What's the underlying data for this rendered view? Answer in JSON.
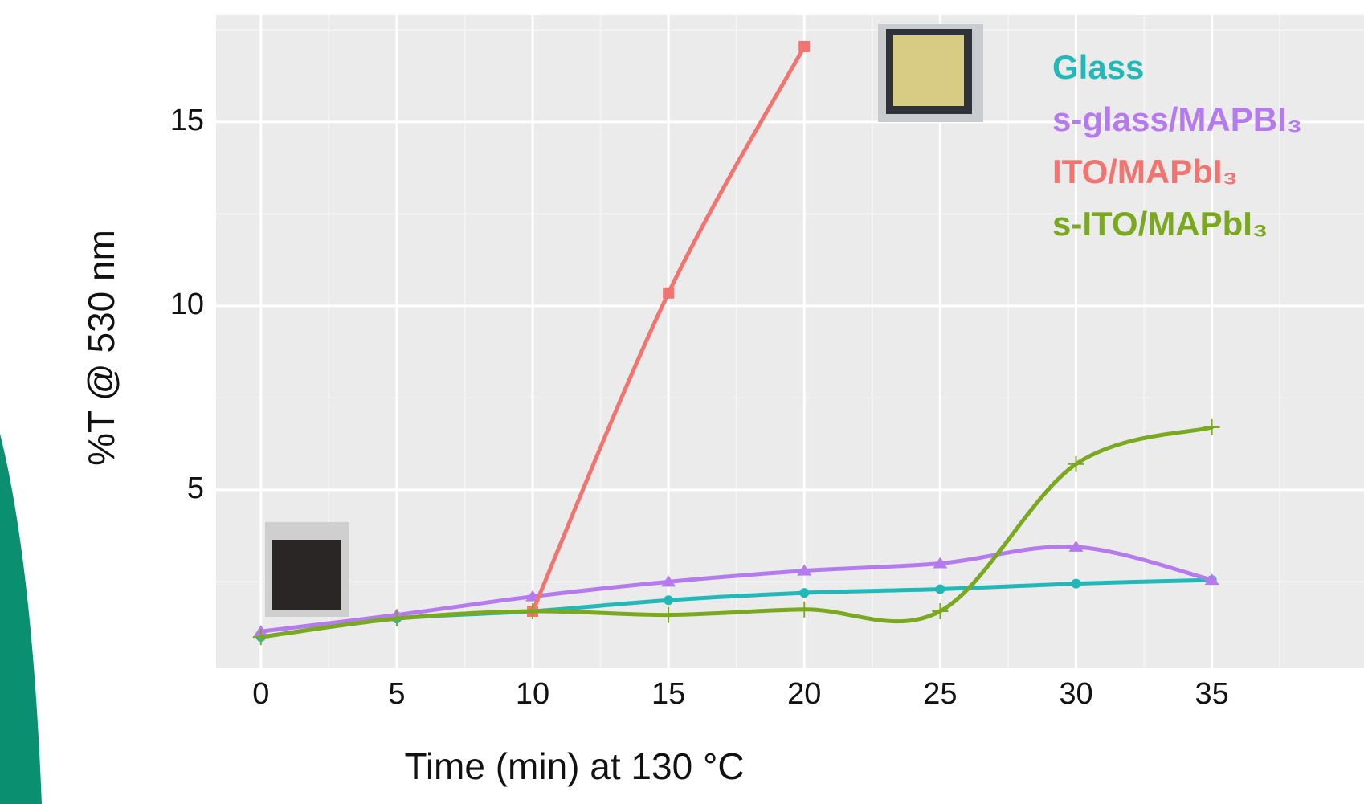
{
  "chart_data": {
    "type": "line",
    "xlabel": "Time (min) at 130 °C",
    "ylabel": "%T @ 530 nm",
    "x": [
      0,
      5,
      10,
      15,
      20,
      25,
      30,
      35
    ],
    "series": [
      {
        "name": "Glass",
        "color": "#22b8b8",
        "marker": "circle",
        "values": [
          1.0,
          1.5,
          1.7,
          2.0,
          2.2,
          2.3,
          2.45,
          2.55
        ]
      },
      {
        "name": "s-glass/MAPBI₃",
        "color": "#b57bee",
        "marker": "triangle",
        "values": [
          1.15,
          1.6,
          2.1,
          2.5,
          2.8,
          3.0,
          3.45,
          2.55
        ]
      },
      {
        "name": "ITO/MAPbI₃",
        "color": "#f07470",
        "marker": "square",
        "values": [
          null,
          null,
          1.7,
          10.35,
          17.05,
          null,
          null,
          null
        ]
      },
      {
        "name": "s-ITO/MAPbI₃",
        "color": "#7aa81e",
        "marker": "plus",
        "values": [
          1.0,
          1.5,
          1.7,
          1.6,
          1.75,
          1.7,
          5.7,
          6.7
        ]
      }
    ],
    "xlim": [
      -1.65,
      40.6
    ],
    "ylim": [
      0.15,
      17.9
    ],
    "xticks": [
      0,
      5,
      10,
      15,
      20,
      25,
      30,
      35
    ],
    "yticks": [
      5,
      10,
      15
    ],
    "minor_xticks": [
      2.5,
      7.5,
      12.5,
      17.5,
      22.5,
      27.5,
      32.5,
      37.5
    ],
    "minor_yticks": [
      2.5,
      7.5,
      12.5,
      17.5
    ],
    "grid": true
  }
}
